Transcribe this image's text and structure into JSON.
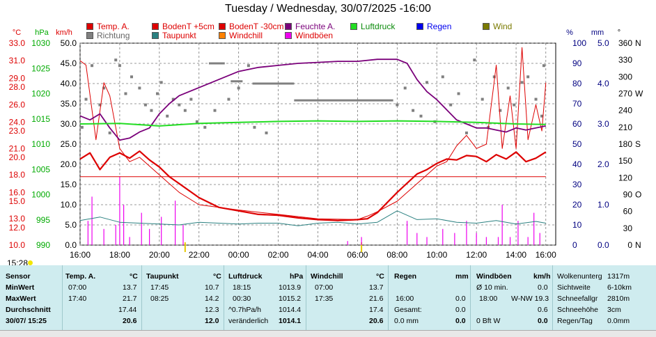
{
  "title": "Tuesday / Wednesday, 30/07/2025  -16:00",
  "legend": [
    {
      "label": "Temp. A.",
      "color": "#dd0000"
    },
    {
      "label": "BodenT +5cm",
      "color": "#dd0000"
    },
    {
      "label": "BodenT -30cm",
      "color": "#dd0000"
    },
    {
      "label": "Feuchte A.",
      "color": "#7a007a"
    },
    {
      "label": "Luftdruck",
      "color": "#22dd22"
    },
    {
      "label": "Regen",
      "color": "#0000ee"
    },
    {
      "label": "Wind",
      "color": "#7a7a00"
    },
    {
      "label": "Richtung",
      "color": "#808080"
    },
    {
      "label": "Taupunkt",
      "color": "#2a8080"
    },
    {
      "label": "Windchill",
      "color": "#ff8000"
    },
    {
      "label": "Windböen",
      "color": "#ee00ee"
    }
  ],
  "axis_units": {
    "temp": "°C",
    "press": "hPa",
    "wind": "km/h",
    "hum": "%",
    "rain": "mm",
    "dir": "°"
  },
  "chart_data": {
    "type": "line",
    "x_ticks": [
      "16:00",
      "18:00",
      "20:00",
      "22:00",
      "00:00",
      "02:00",
      "04:00",
      "06:00",
      "08:00",
      "10:00",
      "12:00",
      "14:00",
      "16:00"
    ],
    "axes": {
      "temp": {
        "ticks": [
          "10.0",
          "12.0",
          "13.0",
          "15.0",
          "16.0",
          "18.0",
          "20.0",
          "21.0",
          "23.0",
          "24.0",
          "26.0",
          "28.0",
          "29.0",
          "31.0",
          "33.0"
        ],
        "range": [
          10.0,
          33.0
        ]
      },
      "press": {
        "ticks": [
          "990",
          "995",
          "1000",
          "1005",
          "1010",
          "1015",
          "1020",
          "1025",
          "1030"
        ],
        "range": [
          990,
          1030
        ]
      },
      "wind": {
        "ticks": [
          "0.0",
          "5.0",
          "10.0",
          "15.0",
          "20.0",
          "25.0",
          "30.0",
          "35.0",
          "40.0",
          "45.0",
          "50.0"
        ],
        "range": [
          0,
          50
        ]
      },
      "hum": {
        "ticks": [
          "0",
          "10",
          "20",
          "30",
          "40",
          "50",
          "60",
          "70",
          "80",
          "90",
          "100"
        ],
        "range": [
          0,
          100
        ]
      },
      "rain": {
        "ticks": [
          "0.0",
          "1.0",
          "2.0",
          "3.0",
          "4.0",
          "5.0"
        ],
        "range": [
          0,
          5
        ]
      },
      "dir": {
        "ticks": [
          "0",
          "30",
          "60",
          "90",
          "120",
          "150",
          "180",
          "210",
          "240",
          "270",
          "300",
          "330",
          "360"
        ],
        "range": [
          0,
          360
        ]
      },
      "dir_letters": [
        [
          "N",
          0
        ],
        [
          "O",
          90
        ],
        [
          "S",
          180
        ],
        [
          "W",
          270
        ],
        [
          "N",
          360
        ]
      ]
    },
    "x_hours": [
      0,
      2,
      4,
      6,
      8,
      10,
      12,
      14,
      16,
      18,
      20,
      22,
      23.5
    ],
    "series": [
      {
        "name": "Temp. A.",
        "color": "#dd0000",
        "axis": "temp",
        "x": [
          0,
          0.5,
          1,
          1.5,
          2,
          2.5,
          3,
          3.5,
          4,
          4.5,
          5,
          6,
          7,
          8,
          9,
          10,
          11,
          12,
          13,
          14,
          14.5,
          15,
          16,
          17,
          17.5,
          18,
          18.5,
          19,
          19.5,
          20,
          20.5,
          21,
          21.5,
          22,
          22.5,
          23,
          23.5
        ],
        "y": [
          19.8,
          20.5,
          18.6,
          20.0,
          20.5,
          19.9,
          20.7,
          19.7,
          18.9,
          17.8,
          17.0,
          15.4,
          14.3,
          13.9,
          13.5,
          13.4,
          13.1,
          12.9,
          12.8,
          12.9,
          13.0,
          13.7,
          16.0,
          18.1,
          18.6,
          19.3,
          19.8,
          19.7,
          20.2,
          20.1,
          19.5,
          20.3,
          19.8,
          20.6,
          19.5,
          19.9,
          20.6
        ]
      },
      {
        "name": "BodenT +5cm",
        "color": "#dd0000",
        "axis": "temp",
        "x": [
          0,
          0.3,
          0.8,
          1.2,
          1.5,
          2,
          2.5,
          3,
          3.5,
          4,
          5,
          6,
          8,
          10,
          12,
          14,
          14.5,
          15,
          16,
          17,
          18,
          18.5,
          19,
          19.5,
          20,
          20.5,
          21,
          21.3,
          21.7,
          22,
          22.3,
          22.6,
          23,
          23.3,
          23.5
        ],
        "y": [
          31.0,
          30.5,
          22.0,
          28.5,
          27.0,
          21.0,
          19.5,
          20.0,
          19.0,
          18.0,
          16.0,
          14.6,
          14.0,
          13.5,
          13.0,
          12.9,
          13.3,
          13.8,
          15.0,
          17.0,
          19.0,
          19.5,
          21.3,
          22.5,
          21.0,
          21.5,
          30.5,
          21.0,
          27.0,
          21.0,
          32.5,
          22.0,
          26.0,
          23.0,
          28.5
        ]
      },
      {
        "name": "BodenT -30cm",
        "color": "#dd0000",
        "axis": "temp",
        "x": [
          0,
          23.5
        ],
        "y": [
          17.8,
          17.8
        ]
      },
      {
        "name": "Feuchte A.",
        "color": "#7a007a",
        "axis": "hum",
        "x": [
          0,
          0.5,
          1,
          1.5,
          2,
          2.5,
          3,
          3.5,
          4,
          4.5,
          5,
          6,
          7,
          8,
          9,
          10,
          11,
          12,
          13,
          14,
          15,
          16,
          16.5,
          17,
          17.5,
          18,
          18.5,
          19,
          19.5,
          20,
          20.5,
          21,
          21.5,
          22,
          22.5,
          23,
          23.5
        ],
        "y": [
          64,
          62,
          65,
          58,
          52,
          53,
          56,
          58,
          65,
          70,
          74,
          78,
          82,
          86,
          88,
          89,
          90,
          90.5,
          91,
          91,
          92,
          92,
          90,
          82,
          76,
          72,
          67,
          62,
          60,
          58,
          58,
          57,
          56,
          58,
          57,
          58,
          59
        ]
      },
      {
        "name": "Luftdruck",
        "color": "#22dd22",
        "axis": "press",
        "x": [
          0,
          2,
          4,
          6,
          8,
          10,
          12,
          14,
          16,
          18,
          20,
          22,
          23.5
        ],
        "y": [
          1014.0,
          1014.1,
          1013.6,
          1014.1,
          1014.3,
          1014.5,
          1014.6,
          1014.5,
          1014.6,
          1014.5,
          1014.3,
          1014.0,
          1013.9
        ]
      },
      {
        "name": "Taupunkt",
        "color": "#2a8080",
        "axis": "temp",
        "x": [
          0,
          1,
          2,
          3,
          4,
          5,
          6,
          7,
          8,
          9,
          10,
          11,
          12,
          13,
          14,
          15,
          16,
          17,
          18,
          19,
          20,
          21,
          22,
          23,
          23.5
        ],
        "y": [
          12.8,
          13.2,
          12.6,
          12.5,
          12.4,
          12.3,
          12.6,
          12.5,
          12.4,
          12.5,
          12.5,
          12.2,
          12.5,
          12.6,
          12.4,
          12.6,
          13.9,
          12.9,
          13.0,
          12.6,
          12.5,
          12.8,
          12.4,
          12.7,
          12.5
        ]
      }
    ],
    "gusts": {
      "name": "Windböen",
      "color": "#ee00ee",
      "axis": "wind",
      "x": [
        0.4,
        0.6,
        1.2,
        1.8,
        2,
        2.2,
        2.5,
        3.1,
        3.5,
        4.1,
        4.8,
        5.2,
        13.5,
        14.2,
        16.5,
        17,
        17.5,
        18.3,
        18.9,
        19.5,
        20,
        20.5,
        21.1,
        21.3,
        21.7,
        22.1,
        22.6,
        22.9,
        23.2
      ],
      "y": [
        6,
        12,
        4,
        5,
        17,
        10,
        2,
        8,
        4,
        7,
        11,
        5,
        1,
        2,
        6,
        3,
        2,
        4,
        3,
        6,
        3,
        2,
        2,
        10,
        2,
        6,
        2,
        8,
        3
      ]
    },
    "direction": {
      "name": "Richtung",
      "color": "#808080",
      "axis": "dir",
      "x": [
        0.1,
        0.3,
        0.6,
        1,
        1.2,
        1.5,
        1.8,
        2,
        2.3,
        2.6,
        3,
        3.3,
        3.6,
        3.9,
        4.1,
        4.4,
        4.7,
        5,
        5.3,
        5.6,
        5.9,
        6.3,
        6.8,
        7.5,
        8,
        8.5,
        8.8,
        9.4,
        16,
        16.4,
        16.8,
        17.2,
        17.5,
        17.9,
        18.3,
        18.7,
        19.1,
        19.5,
        19.9,
        20.3,
        20.6,
        20.9,
        21.2,
        21.6,
        21.9,
        22.3,
        22.6,
        23,
        23.3,
        23.4
      ],
      "y": [
        210,
        260,
        320,
        250,
        280,
        200,
        330,
        320,
        270,
        300,
        280,
        250,
        240,
        270,
        290,
        230,
        260,
        250,
        240,
        260,
        220,
        210,
        240,
        260,
        280,
        320,
        210,
        200,
        250,
        280,
        240,
        230,
        290,
        220,
        300,
        250,
        270,
        200,
        330,
        260,
        210,
        300,
        240,
        280,
        250,
        290,
        300,
        260,
        230,
        320
      ]
    },
    "direction_segments": [
      {
        "x": [
          6.5,
          7.3
        ],
        "y": [
          324,
          324
        ]
      },
      {
        "x": [
          7.6,
          8.2
        ],
        "y": [
          292,
          292
        ]
      },
      {
        "x": [
          8.7,
          10.8
        ],
        "y": [
          288,
          288
        ]
      },
      {
        "x": [
          10.8,
          15.8
        ],
        "y": [
          258,
          258
        ]
      }
    ]
  },
  "stats": {
    "sensor": {
      "header": "Sensor",
      "rows": [
        "MinWert",
        "MaxWert",
        "Durchschnitt",
        "30/07/ 15:25"
      ]
    },
    "temp": {
      "header": "Temp. A.",
      "unit": "°C",
      "rows": [
        [
          "07:00",
          "13.7"
        ],
        [
          "17:40",
          "21.7"
        ],
        [
          "",
          "17.44"
        ],
        [
          "",
          "20.6"
        ]
      ]
    },
    "dew": {
      "header": "Taupunkt",
      "unit": "°C",
      "rows": [
        [
          "17:45",
          "10.7"
        ],
        [
          "08:25",
          "14.2"
        ],
        [
          "",
          "12.3"
        ],
        [
          "",
          "12.0"
        ]
      ]
    },
    "press": {
      "header": "Luftdruck",
      "unit": "hPa",
      "rows": [
        [
          "18:15",
          "1013.9"
        ],
        [
          "00:30",
          "1015.2"
        ],
        [
          "^0.7hPa/h",
          "1014.4"
        ],
        [
          "veränderlich",
          "1014.1"
        ]
      ]
    },
    "chill": {
      "header": "Windchill",
      "unit": "°C",
      "rows": [
        [
          "07:00",
          "13.7"
        ],
        [
          "17:35",
          "21.6"
        ],
        [
          "",
          "17.4"
        ],
        [
          "",
          "20.6"
        ]
      ]
    },
    "rain": {
      "header": "Regen",
      "unit": "mm",
      "rows": [
        [
          "",
          ""
        ],
        [
          "16:00",
          "0.0"
        ],
        [
          "Gesamt:",
          "0.0"
        ],
        [
          "0.0 mm",
          "0.0"
        ]
      ]
    },
    "gust": {
      "header": "Windböen",
      "unit": "km/h",
      "rows": [
        [
          "Ø 10 min.",
          "",
          "0.0"
        ],
        [
          "18:00",
          "W-NW 19.3",
          ""
        ],
        [
          "",
          "",
          "0.6"
        ],
        [
          "0 Bft W",
          "",
          "0.0"
        ]
      ]
    },
    "misc": [
      [
        "Wolkenunterg",
        "1317m"
      ],
      [
        "Sichtweite",
        "6-10km"
      ],
      [
        "Schneefallgr",
        "2810m"
      ],
      [
        "Schneehöhe",
        "3cm"
      ],
      [
        "Regen/Tag",
        "0.0mm"
      ]
    ]
  },
  "current_time": "15:28"
}
